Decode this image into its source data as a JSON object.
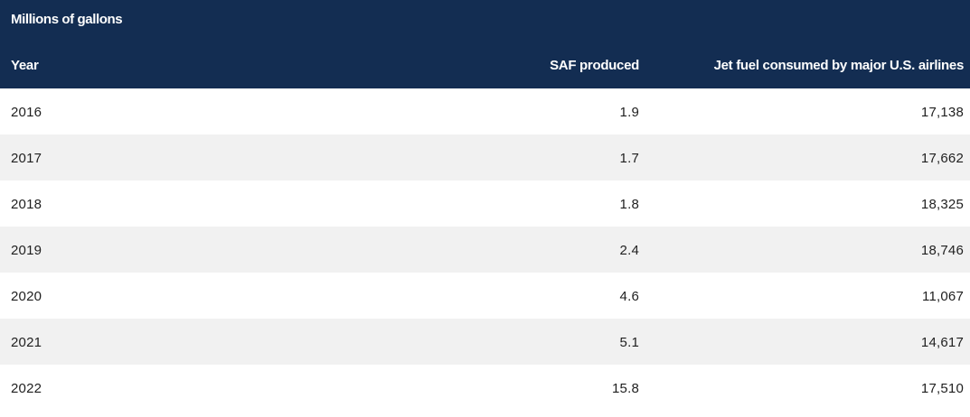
{
  "chart_data": {
    "type": "table",
    "unit_label": "Millions of gallons",
    "columns": [
      "Year",
      "SAF produced",
      "Jet fuel consumed by major U.S. airlines"
    ],
    "rows": [
      {
        "year": "2016",
        "saf": "1.9",
        "jet": "17,138"
      },
      {
        "year": "2017",
        "saf": "1.7",
        "jet": "17,662"
      },
      {
        "year": "2018",
        "saf": "1.8",
        "jet": "18,325"
      },
      {
        "year": "2019",
        "saf": "2.4",
        "jet": "18,746"
      },
      {
        "year": "2020",
        "saf": "4.6",
        "jet": "11,067"
      },
      {
        "year": "2021",
        "saf": "5.1",
        "jet": "14,617"
      },
      {
        "year": "2022",
        "saf": "15.8",
        "jet": "17,510"
      }
    ]
  },
  "colors": {
    "header_bg": "#132d52",
    "header_text": "#ffffff",
    "row_alt_bg": "#f1f1f1",
    "row_bg": "#ffffff",
    "cell_text": "#1f1f1f"
  }
}
